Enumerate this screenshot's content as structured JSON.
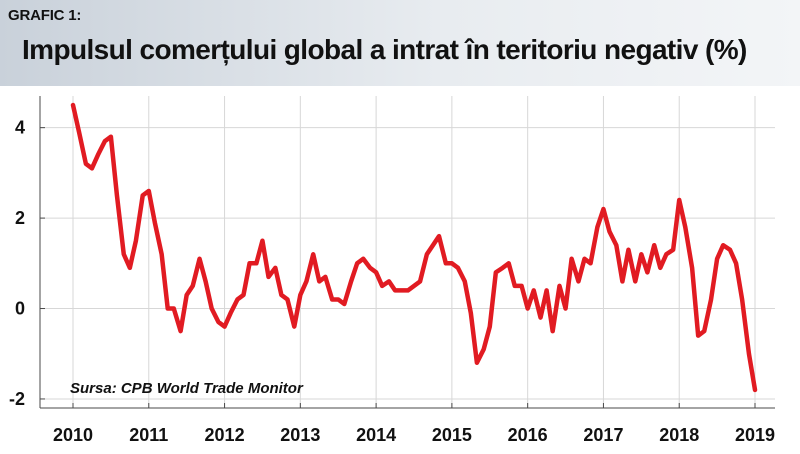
{
  "header": {
    "label": "GRAFIC 1:",
    "title": "Impulsul comerțului global a intrat în teritoriu negativ (%)"
  },
  "chart_data": {
    "type": "line",
    "title": "Impulsul comerțului global a intrat în teritoriu negativ (%)",
    "xlabel": "",
    "ylabel": "",
    "xlim": [
      2010,
      2019
    ],
    "ylim": [
      -2.2,
      4.7
    ],
    "yticks": [
      -2,
      0,
      2,
      4
    ],
    "xticks": [
      2010,
      2011,
      2012,
      2013,
      2014,
      2015,
      2016,
      2017,
      2018,
      2019
    ],
    "grid": true,
    "series": [
      {
        "name": "",
        "color": "#e11b22",
        "x": [
          2010.0,
          2010.08,
          2010.17,
          2010.25,
          2010.33,
          2010.42,
          2010.5,
          2010.58,
          2010.67,
          2010.75,
          2010.83,
          2010.92,
          2011.0,
          2011.08,
          2011.17,
          2011.25,
          2011.33,
          2011.42,
          2011.5,
          2011.58,
          2011.67,
          2011.75,
          2011.83,
          2011.92,
          2012.0,
          2012.08,
          2012.17,
          2012.25,
          2012.33,
          2012.42,
          2012.5,
          2012.58,
          2012.67,
          2012.75,
          2012.83,
          2012.92,
          2013.0,
          2013.08,
          2013.17,
          2013.25,
          2013.33,
          2013.42,
          2013.5,
          2013.58,
          2013.67,
          2013.75,
          2013.83,
          2013.92,
          2014.0,
          2014.08,
          2014.17,
          2014.25,
          2014.33,
          2014.42,
          2014.5,
          2014.58,
          2014.67,
          2014.75,
          2014.83,
          2014.92,
          2015.0,
          2015.08,
          2015.17,
          2015.25,
          2015.33,
          2015.42,
          2015.5,
          2015.58,
          2015.67,
          2015.75,
          2015.83,
          2015.92,
          2016.0,
          2016.08,
          2016.17,
          2016.25,
          2016.33,
          2016.42,
          2016.5,
          2016.58,
          2016.67,
          2016.75,
          2016.83,
          2016.92,
          2017.0,
          2017.08,
          2017.17,
          2017.25,
          2017.33,
          2017.42,
          2017.5,
          2017.58,
          2017.67,
          2017.75,
          2017.83,
          2017.92,
          2018.0,
          2018.08,
          2018.17,
          2018.25,
          2018.33,
          2018.42,
          2018.5,
          2018.58,
          2018.67,
          2018.75,
          2018.83,
          2018.92,
          2019.0
        ],
        "y": [
          4.5,
          3.9,
          3.2,
          3.1,
          3.4,
          3.7,
          3.8,
          2.5,
          1.2,
          0.9,
          1.5,
          2.5,
          2.6,
          1.9,
          1.2,
          0.0,
          0.0,
          -0.5,
          0.3,
          0.5,
          1.1,
          0.6,
          0.0,
          -0.3,
          -0.4,
          -0.1,
          0.2,
          0.3,
          1.0,
          1.0,
          1.5,
          0.7,
          0.9,
          0.3,
          0.2,
          -0.4,
          0.3,
          0.6,
          1.2,
          0.6,
          0.7,
          0.2,
          0.2,
          0.1,
          0.6,
          1.0,
          1.1,
          0.9,
          0.8,
          0.5,
          0.6,
          0.4,
          0.4,
          0.4,
          0.5,
          0.6,
          1.2,
          1.4,
          1.6,
          1.0,
          1.0,
          0.9,
          0.6,
          -0.1,
          -1.2,
          -0.9,
          -0.4,
          0.8,
          0.9,
          1.0,
          0.5,
          0.5,
          0.0,
          0.4,
          -0.2,
          0.4,
          -0.5,
          0.5,
          0.0,
          1.1,
          0.6,
          1.1,
          1.0,
          1.8,
          2.2,
          1.7,
          1.4,
          0.6,
          1.3,
          0.6,
          1.2,
          0.8,
          1.4,
          0.9,
          1.2,
          1.3,
          2.4,
          1.8,
          0.9,
          -0.6,
          -0.5,
          0.2,
          1.1,
          1.4,
          1.3,
          1.0,
          0.2,
          -1.0,
          -1.8
        ]
      }
    ],
    "annotations": [
      {
        "text": "Sursa: CPB World Trade Monitor"
      }
    ]
  }
}
